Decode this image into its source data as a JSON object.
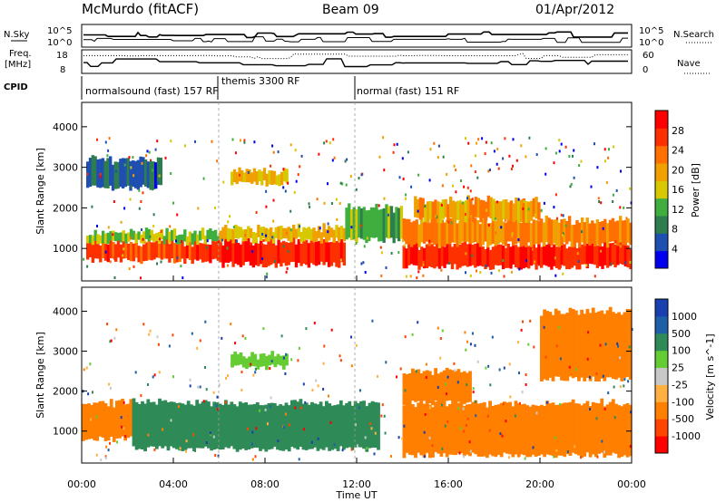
{
  "header": {
    "station": "McMurdo (fitACF)",
    "beam": "Beam 09",
    "date": "01/Apr/2012"
  },
  "noise_panel": {
    "left_label": "N.Sky",
    "right_label": "N.Search",
    "left_ticks": [
      "10^5",
      "10^0"
    ],
    "right_ticks": [
      "10^5",
      "10^0"
    ]
  },
  "freq_panel": {
    "left_label_1": "Freq.",
    "left_label_2": "[MHz]",
    "right_label": "Nave",
    "left_ticks": [
      "18",
      "8"
    ],
    "right_ticks": [
      "60",
      "0"
    ]
  },
  "cpid": {
    "label": "CPID",
    "modes": [
      {
        "text": "normalsound (fast) 157 RF"
      },
      {
        "text": "themis 3300 RF"
      },
      {
        "text": "normal (fast) 151 RF"
      }
    ]
  },
  "colors": {
    "power": [
      "#0000ee",
      "#1f4fb0",
      "#2e7d4f",
      "#3fae3f",
      "#d8c800",
      "#f0a000",
      "#ff7000",
      "#ff3000",
      "#ff0000"
    ],
    "velocity": [
      "#ff0000",
      "#ff4500",
      "#ff7f00",
      "#ffb040",
      "#c8c8c8",
      "#66cc33",
      "#2e8b57",
      "#1f5fa8",
      "#1a3fb0"
    ]
  },
  "chart_data": [
    {
      "type": "heatmap",
      "title": "",
      "xlabel": "",
      "ylabel": "Slant Range [km]",
      "xlim": [
        "00:00",
        "24:00"
      ],
      "ylim": [
        200,
        4600
      ],
      "yticks": [
        1000,
        2000,
        3000,
        4000
      ],
      "colorbar": {
        "label": "Power [dB]",
        "ticks": [
          4,
          8,
          12,
          16,
          20,
          24,
          28
        ],
        "range": [
          0,
          32
        ]
      },
      "bands": [
        {
          "t0": 0.2,
          "t1": 6.0,
          "r0": 700,
          "r1": 1150,
          "value": 26
        },
        {
          "t0": 0.2,
          "t1": 6.0,
          "r0": 1150,
          "r1": 1400,
          "value": 14
        },
        {
          "t0": 6.0,
          "t1": 11.5,
          "r0": 600,
          "r1": 1200,
          "value": 28
        },
        {
          "t0": 6.0,
          "t1": 11.5,
          "r0": 1200,
          "r1": 1500,
          "value": 18
        },
        {
          "t0": 11.5,
          "t1": 14.0,
          "r0": 1200,
          "r1": 2000,
          "value": 12
        },
        {
          "t0": 14.0,
          "t1": 24.0,
          "r0": 550,
          "r1": 1100,
          "value": 28
        },
        {
          "t0": 14.0,
          "t1": 24.0,
          "r0": 1100,
          "r1": 1700,
          "value": 22
        },
        {
          "t0": 14.5,
          "t1": 20.0,
          "r0": 1700,
          "r1": 2200,
          "value": 20
        },
        {
          "t0": 6.5,
          "t1": 9.0,
          "r0": 2600,
          "r1": 2900,
          "value": 18
        },
        {
          "t0": 0.2,
          "t1": 3.5,
          "r0": 2500,
          "r1": 3200,
          "value": 6
        }
      ]
    },
    {
      "type": "heatmap",
      "title": "",
      "xlabel": "Time UT",
      "ylabel": "Slant Range [km]",
      "xlim": [
        "00:00",
        "24:00"
      ],
      "xticks": [
        "00:00",
        "04:00",
        "08:00",
        "12:00",
        "16:00",
        "20:00",
        "00:00"
      ],
      "ylim": [
        200,
        4600
      ],
      "yticks": [
        1000,
        2000,
        3000,
        4000
      ],
      "colorbar": {
        "label": "Velocity [m s^-1]",
        "ticks": [
          1000,
          500,
          100,
          25,
          -25,
          -100,
          -500,
          -1000
        ]
      },
      "bands": [
        {
          "t0": 0.0,
          "t1": 2.2,
          "r0": 800,
          "r1": 1700,
          "value": -250
        },
        {
          "t0": 2.2,
          "t1": 13.0,
          "r0": 550,
          "r1": 1700,
          "value": 250
        },
        {
          "t0": 6.5,
          "t1": 9.0,
          "r0": 2600,
          "r1": 2900,
          "value": 60
        },
        {
          "t0": 14.0,
          "t1": 24.0,
          "r0": 400,
          "r1": 1700,
          "value": -250
        },
        {
          "t0": 14.0,
          "t1": 17.0,
          "r0": 1700,
          "r1": 2500,
          "value": -250
        },
        {
          "t0": 20.0,
          "t1": 24.0,
          "r0": 2300,
          "r1": 4000,
          "value": -250
        }
      ]
    }
  ]
}
